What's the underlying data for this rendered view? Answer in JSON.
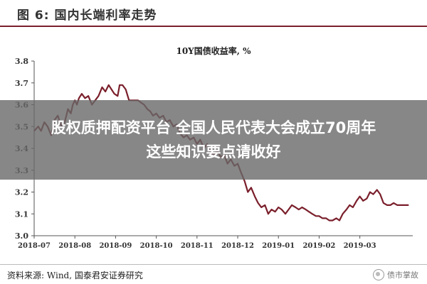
{
  "figure": {
    "title": "图 6: 国内长端利率走势"
  },
  "chart_data": {
    "type": "line",
    "title": "10Y国债收益率, %",
    "ylim": [
      3.0,
      3.8
    ],
    "yticks": [
      "3.0",
      "3.1",
      "3.2",
      "3.3",
      "3.4",
      "3.5",
      "3.6",
      "3.7",
      "3.8"
    ],
    "xlim": [
      0,
      9.3
    ],
    "xticks": [
      {
        "label": "2018-07",
        "x": 0
      },
      {
        "label": "2018-08",
        "x": 1
      },
      {
        "label": "2018-09",
        "x": 2
      },
      {
        "label": "2018-10",
        "x": 3
      },
      {
        "label": "2018-11",
        "x": 4
      },
      {
        "label": "2018-12",
        "x": 5
      },
      {
        "label": "2019-01",
        "x": 6
      },
      {
        "label": "2019-02",
        "x": 7
      },
      {
        "label": "2019-03",
        "x": 8
      }
    ],
    "grid": false,
    "color": "#7a1f2b",
    "series": [
      {
        "x": [
          0.0,
          0.05,
          0.1,
          0.17,
          0.25,
          0.33,
          0.42,
          0.5,
          0.58,
          0.67,
          0.75,
          0.83,
          0.9,
          0.95,
          1.0,
          1.05,
          1.1,
          1.17,
          1.25,
          1.33,
          1.42,
          1.5,
          1.58,
          1.67,
          1.75,
          1.83,
          1.9,
          1.97,
          2.05,
          2.1,
          2.17,
          2.25,
          2.33,
          2.4,
          2.45,
          2.55,
          2.62,
          2.7,
          2.78,
          2.85,
          2.92,
          3.0,
          3.08,
          3.17,
          3.25,
          3.33,
          3.42,
          3.5,
          3.58,
          3.67,
          3.75,
          3.83,
          3.92,
          4.0,
          4.08,
          4.17,
          4.25,
          4.33,
          4.42,
          4.5,
          4.58,
          4.67,
          4.75,
          4.83,
          4.92,
          5.0,
          5.08,
          5.17,
          5.25,
          5.33,
          5.42,
          5.5,
          5.58,
          5.67,
          5.75,
          5.83,
          5.92,
          6.0,
          6.08,
          6.17,
          6.25,
          6.33,
          6.42,
          6.5,
          6.58,
          6.67,
          6.75,
          6.83,
          6.92,
          7.0,
          7.08,
          7.17,
          7.25,
          7.33,
          7.42,
          7.5,
          7.58,
          7.67,
          7.75,
          7.83,
          7.92,
          8.0,
          8.08,
          8.17,
          8.25,
          8.33,
          8.42,
          8.5,
          8.58,
          8.67,
          8.75,
          8.83,
          8.92,
          9.0,
          9.1,
          9.2
        ],
        "y": [
          3.48,
          3.49,
          3.5,
          3.48,
          3.52,
          3.5,
          3.46,
          3.53,
          3.55,
          3.5,
          3.52,
          3.58,
          3.56,
          3.6,
          3.62,
          3.6,
          3.63,
          3.65,
          3.63,
          3.64,
          3.6,
          3.62,
          3.64,
          3.68,
          3.66,
          3.69,
          3.67,
          3.65,
          3.64,
          3.69,
          3.69,
          3.67,
          3.62,
          3.62,
          3.62,
          3.62,
          3.61,
          3.6,
          3.58,
          3.57,
          3.55,
          3.56,
          3.54,
          3.55,
          3.52,
          3.53,
          3.5,
          3.51,
          3.47,
          3.45,
          3.46,
          3.44,
          3.45,
          3.42,
          3.44,
          3.4,
          3.42,
          3.38,
          3.37,
          3.39,
          3.36,
          3.37,
          3.33,
          3.35,
          3.32,
          3.33,
          3.29,
          3.25,
          3.2,
          3.22,
          3.18,
          3.15,
          3.13,
          3.14,
          3.1,
          3.12,
          3.11,
          3.13,
          3.12,
          3.1,
          3.12,
          3.14,
          3.13,
          3.12,
          3.13,
          3.12,
          3.11,
          3.1,
          3.09,
          3.09,
          3.08,
          3.08,
          3.07,
          3.07,
          3.08,
          3.07,
          3.1,
          3.12,
          3.14,
          3.13,
          3.16,
          3.18,
          3.16,
          3.17,
          3.2,
          3.19,
          3.21,
          3.19,
          3.15,
          3.14,
          3.14,
          3.15,
          3.14,
          3.14,
          3.14,
          3.14
        ]
      }
    ]
  },
  "source": "资料来源: Wind, 国泰君安证券研究",
  "brand": "债市掌故",
  "banner": {
    "line1": "股权质押配资平台 全国人民代表大会成立70周年",
    "line2": "这些知识要点请收好"
  }
}
